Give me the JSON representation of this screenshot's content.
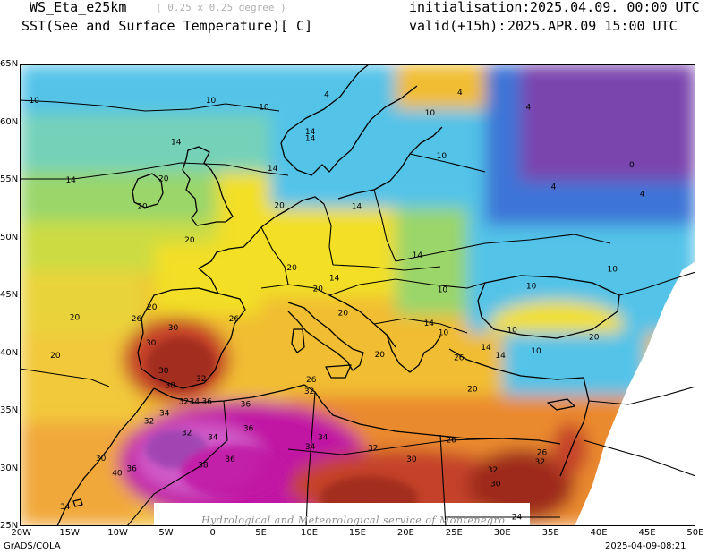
{
  "header": {
    "model": "WS_Eta_e25km",
    "resolution": "( 0.25 x 0.25 degree )",
    "variable": "SST(See and Surface Temperature)[ C]",
    "init_label": "initialisation:",
    "init_time": "2025.04.09. 00:00 UTC",
    "valid_label": "valid(+15h):",
    "valid_time": "2025.APR.09 15:00 UTC"
  },
  "footer": {
    "software": "GrADS/COLA",
    "timestamp": "2025-04-09-08:21",
    "watermark": "Hydrological and Meteorological service of Montenegro"
  },
  "map": {
    "lon_range": [
      -20,
      50
    ],
    "lat_range": [
      25,
      65
    ],
    "lon_ticks": [
      "20W",
      "15W",
      "10W",
      "5W",
      "0",
      "5E",
      "10E",
      "15E",
      "20E",
      "25E",
      "30E",
      "35E",
      "40E",
      "45E",
      "50E"
    ],
    "lat_ticks": [
      "25N",
      "30N",
      "35N",
      "40N",
      "45N",
      "50N",
      "55N",
      "60N",
      "65N"
    ],
    "contour_labels": [
      {
        "text": "10",
        "lon": -18.5,
        "lat": 61.9
      },
      {
        "text": "10",
        "lon": -0.2,
        "lat": 61.9
      },
      {
        "text": "10",
        "lon": 5.3,
        "lat": 61.3
      },
      {
        "text": "10",
        "lon": 22.5,
        "lat": 60.8
      },
      {
        "text": "4",
        "lon": 25.6,
        "lat": 62.6
      },
      {
        "text": "4",
        "lon": 32.7,
        "lat": 61.3
      },
      {
        "text": "4",
        "lon": 11.8,
        "lat": 62.4
      },
      {
        "text": "14",
        "lon": -3.8,
        "lat": 58.3
      },
      {
        "text": "14",
        "lon": 10.1,
        "lat": 59.2
      },
      {
        "text": "14",
        "lon": 10.1,
        "lat": 58.6
      },
      {
        "text": "14",
        "lon": -14.7,
        "lat": 55.0
      },
      {
        "text": "14",
        "lon": 6.2,
        "lat": 56.0
      },
      {
        "text": "20",
        "lon": -5.1,
        "lat": 55.1
      },
      {
        "text": "20",
        "lon": -7.3,
        "lat": 52.7
      },
      {
        "text": "10",
        "lon": 23.7,
        "lat": 57.1
      },
      {
        "text": "0",
        "lon": 43.4,
        "lat": 56.3
      },
      {
        "text": "4",
        "lon": 35.3,
        "lat": 54.4
      },
      {
        "text": "4",
        "lon": 44.5,
        "lat": 53.8
      },
      {
        "text": "20",
        "lon": 6.9,
        "lat": 52.8
      },
      {
        "text": "20",
        "lon": -2.4,
        "lat": 49.8
      },
      {
        "text": "14",
        "lon": 14.9,
        "lat": 52.7
      },
      {
        "text": "14",
        "lon": 21.2,
        "lat": 48.5
      },
      {
        "text": "20",
        "lon": 8.2,
        "lat": 47.4
      },
      {
        "text": "10",
        "lon": 41.4,
        "lat": 47.3
      },
      {
        "text": "14",
        "lon": 12.6,
        "lat": 46.5
      },
      {
        "text": "20",
        "lon": 10.9,
        "lat": 45.6
      },
      {
        "text": "10",
        "lon": 23.8,
        "lat": 45.5
      },
      {
        "text": "10",
        "lon": 33.0,
        "lat": 45.8
      },
      {
        "text": "20",
        "lon": -6.3,
        "lat": 44.0
      },
      {
        "text": "20",
        "lon": -14.3,
        "lat": 43.1
      },
      {
        "text": "26",
        "lon": -7.9,
        "lat": 43.0
      },
      {
        "text": "26",
        "lon": 2.2,
        "lat": 43.0
      },
      {
        "text": "20",
        "lon": 13.5,
        "lat": 43.5
      },
      {
        "text": "14",
        "lon": 22.4,
        "lat": 42.6
      },
      {
        "text": "10",
        "lon": 23.9,
        "lat": 41.8
      },
      {
        "text": "30",
        "lon": -4.1,
        "lat": 42.2
      },
      {
        "text": "20",
        "lon": -16.3,
        "lat": 39.8
      },
      {
        "text": "30",
        "lon": -6.4,
        "lat": 40.9
      },
      {
        "text": "20",
        "lon": 17.3,
        "lat": 39.9
      },
      {
        "text": "26",
        "lon": 25.5,
        "lat": 39.6
      },
      {
        "text": "14",
        "lon": 28.3,
        "lat": 40.5
      },
      {
        "text": "10",
        "lon": 31.0,
        "lat": 42.0
      },
      {
        "text": "10",
        "lon": 33.5,
        "lat": 40.2
      },
      {
        "text": "14",
        "lon": 29.8,
        "lat": 39.8
      },
      {
        "text": "20",
        "lon": 39.5,
        "lat": 41.4
      },
      {
        "text": "30",
        "lon": -5.1,
        "lat": 38.5
      },
      {
        "text": "32",
        "lon": -1.2,
        "lat": 37.8
      },
      {
        "text": "30",
        "lon": -4.4,
        "lat": 37.2
      },
      {
        "text": "26",
        "lon": 10.2,
        "lat": 37.7
      },
      {
        "text": "20",
        "lon": 26.9,
        "lat": 36.9
      },
      {
        "text": "32",
        "lon": 10.0,
        "lat": 36.7
      },
      {
        "text": "32",
        "lon": -3.0,
        "lat": 35.8
      },
      {
        "text": "34",
        "lon": -1.9,
        "lat": 35.8
      },
      {
        "text": "36",
        "lon": -0.6,
        "lat": 35.8
      },
      {
        "text": "36",
        "lon": 3.4,
        "lat": 35.6
      },
      {
        "text": "34",
        "lon": -5.0,
        "lat": 34.8
      },
      {
        "text": "32",
        "lon": -6.6,
        "lat": 34.1
      },
      {
        "text": "32",
        "lon": -2.7,
        "lat": 33.1
      },
      {
        "text": "36",
        "lon": 3.7,
        "lat": 33.5
      },
      {
        "text": "34",
        "lon": 0.0,
        "lat": 32.7
      },
      {
        "text": "34",
        "lon": 11.4,
        "lat": 32.7
      },
      {
        "text": "26",
        "lon": 24.7,
        "lat": 32.5
      },
      {
        "text": "34",
        "lon": 10.1,
        "lat": 31.9
      },
      {
        "text": "32",
        "lon": 16.6,
        "lat": 31.8
      },
      {
        "text": "30",
        "lon": -11.6,
        "lat": 30.9
      },
      {
        "text": "36",
        "lon": 1.8,
        "lat": 30.8
      },
      {
        "text": "30",
        "lon": 20.6,
        "lat": 30.8
      },
      {
        "text": "32",
        "lon": 33.9,
        "lat": 30.6
      },
      {
        "text": "26",
        "lon": 34.1,
        "lat": 31.4
      },
      {
        "text": "36",
        "lon": -8.4,
        "lat": 30.0
      },
      {
        "text": "38",
        "lon": -1.0,
        "lat": 30.3
      },
      {
        "text": "40",
        "lon": -9.9,
        "lat": 29.6
      },
      {
        "text": "32",
        "lon": 29.0,
        "lat": 29.9
      },
      {
        "text": "30",
        "lon": 29.3,
        "lat": 28.7
      },
      {
        "text": "34",
        "lon": -15.3,
        "lat": 26.7
      },
      {
        "text": "24",
        "lon": 31.5,
        "lat": 25.8
      }
    ]
  },
  "colors": {
    "sst_0": "#7a44ad",
    "sst_4": "#3c74d6",
    "sst_10": "#53c3e8",
    "sst_14": "#74d2b8",
    "sst_17": "#9ad66b",
    "sst_20": "#cbdc42",
    "sst_22": "#f2df28",
    "sst_24": "#f1bd33",
    "sst_26": "#ea8a2f",
    "sst_30": "#c4422a",
    "sst_32": "#9e2b1f",
    "sst_34": "#c118a4",
    "sst_38": "#9a43b0",
    "land_line": "#000000"
  }
}
